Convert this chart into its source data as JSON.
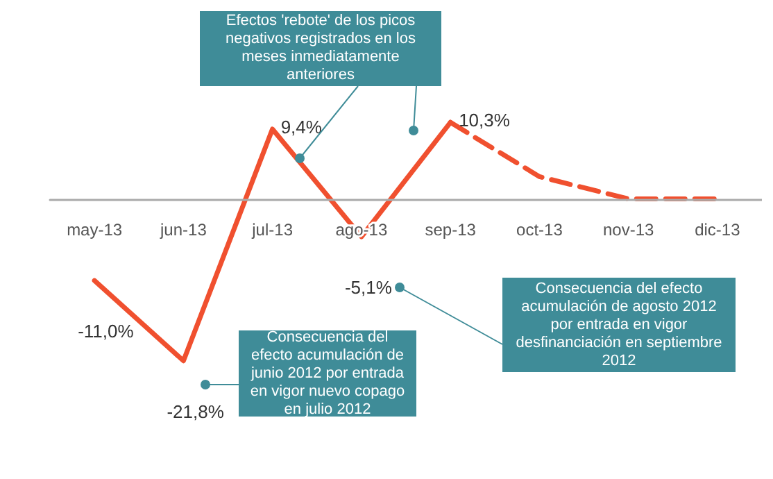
{
  "chart_data": {
    "type": "line",
    "categories": [
      "may-13",
      "jun-13",
      "jul-13",
      "ago-13",
      "sep-13",
      "oct-13",
      "nov-13",
      "dic-13"
    ],
    "series": [
      {
        "color": "#f0502f",
        "line_style": "solid",
        "values": [
          -11.0,
          -21.8,
          9.4,
          -5.1,
          10.3,
          null,
          null,
          null
        ],
        "value_labels": [
          "-11,0%",
          "-21,8%",
          "9,4%",
          "-5,1%",
          "10,3%",
          null,
          null,
          null
        ]
      },
      {
        "color": "#f0502f",
        "line_style": "dashed",
        "values": [
          null,
          null,
          null,
          null,
          10.3,
          3,
          0,
          0
        ]
      }
    ],
    "annotations": [
      "Efectos 'rebote' de los picos negativos registrados en los meses inmediatamente anteriores",
      "Consecuencia del efecto acumulación de junio 2012 por entrada en vigor nuevo copago en julio 2012",
      "Consecuencia del efecto acumulación de agosto 2012 por entrada en vigor desfinanciación en septiembre 2012"
    ],
    "marker": "none",
    "grid": false
  }
}
